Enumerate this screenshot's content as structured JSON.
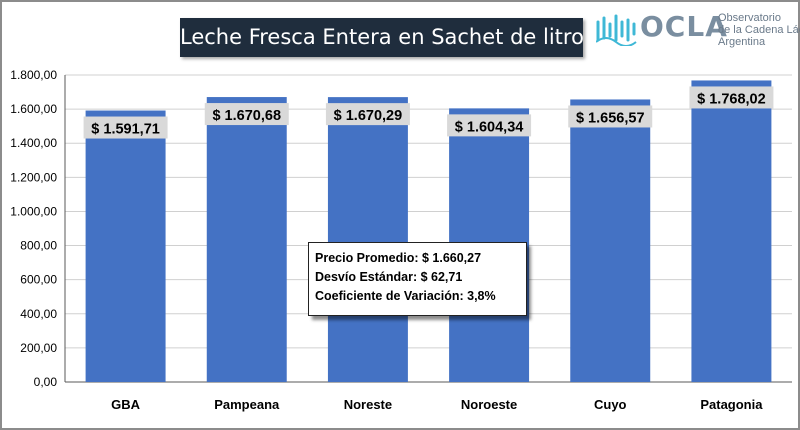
{
  "title": "Leche Fresca Entera en Sachet de litro",
  "logo": {
    "name": "OCLA",
    "subtitle_lines": [
      "Observatorio",
      "de la Cadena Láctea",
      "Argentina"
    ],
    "icon": "milk-wave-icon"
  },
  "colors": {
    "bar": "#4472c4",
    "title_bg": "#1f2d3d",
    "label_bg": "#d9d9d9"
  },
  "stats": {
    "precio_promedio": "Precio Promedio: $ 1.660,27",
    "desvio_estandar": "Desvío Estándar: $ 62,71",
    "coeficiente": "Coeficiente de Variación: 3,8%"
  },
  "chart_data": {
    "type": "bar",
    "categories": [
      "GBA",
      "Pampeana",
      "Noreste",
      "Noroeste",
      "Cuyo",
      "Patagonia"
    ],
    "values": [
      1591.71,
      1670.68,
      1670.29,
      1604.34,
      1656.57,
      1768.02
    ],
    "data_labels": [
      "$ 1.591,71",
      "$ 1.670,68",
      "$ 1.670,29",
      "$ 1.604,34",
      "$ 1.656,57",
      "$ 1.768,02"
    ],
    "ylim": [
      0,
      1800
    ],
    "yticks": [
      0,
      200,
      400,
      600,
      800,
      1000,
      1200,
      1400,
      1600,
      1800
    ],
    "ytick_labels": [
      "0,00",
      "200,00",
      "400,00",
      "600,00",
      "800,00",
      "1.000,00",
      "1.200,00",
      "1.400,00",
      "1.600,00",
      "1.800,00"
    ],
    "grid": true,
    "legend": "none"
  }
}
